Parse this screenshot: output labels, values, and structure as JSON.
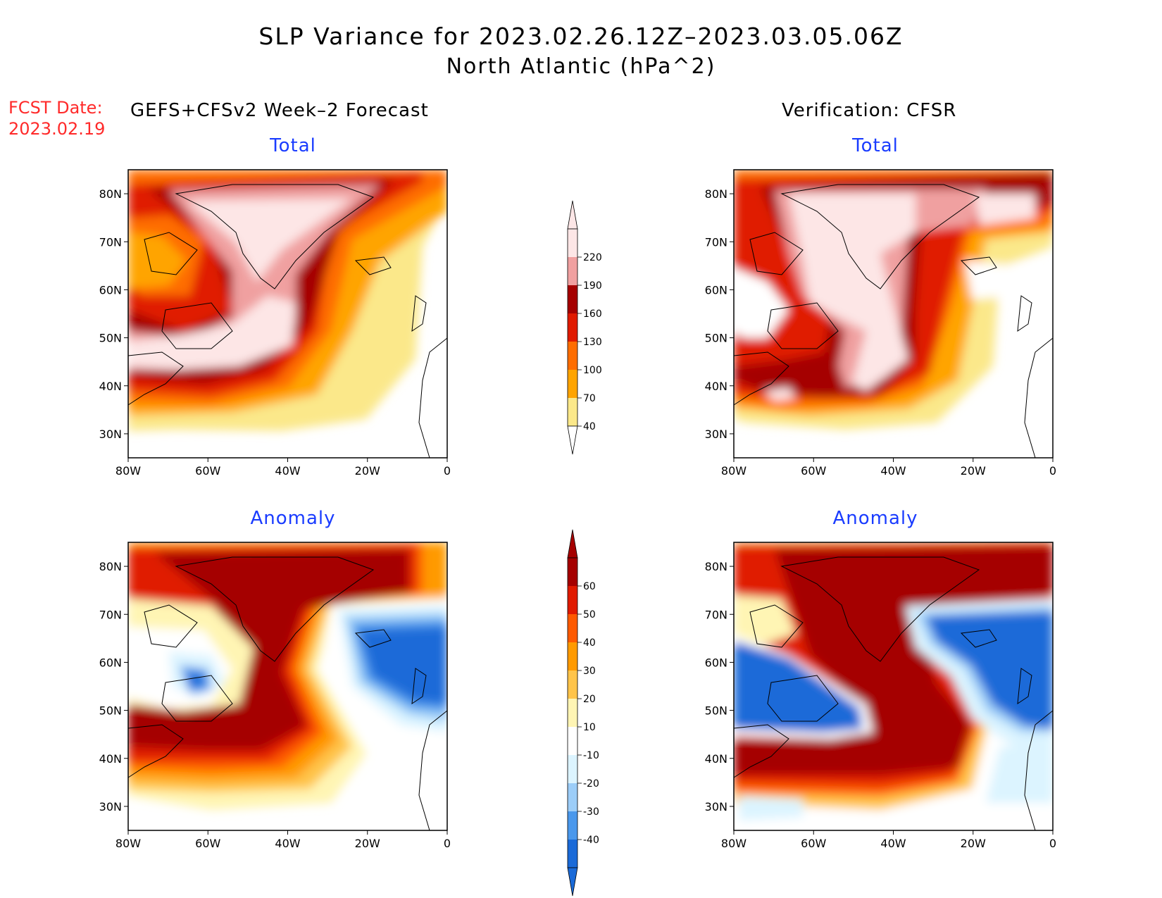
{
  "title": {
    "line1": "SLP Variance for 2023.02.26.12Z–2023.03.05.06Z",
    "line2": "North Atlantic (hPa^2)"
  },
  "forecast_date": {
    "label": "FCST Date:",
    "value": "2023.02.19"
  },
  "left_header": "GEFS+CFSv2 Week–2 Forecast",
  "right_header": "Verification: CFSR",
  "panels": {
    "fc_total": {
      "subtitle": "Total"
    },
    "vf_total": {
      "subtitle": "Total"
    },
    "fc_anom": {
      "subtitle": "Anomaly"
    },
    "vf_anom": {
      "subtitle": "Anomaly"
    }
  },
  "axes": {
    "lat_ticks": [
      "30N",
      "40N",
      "50N",
      "60N",
      "70N",
      "80N"
    ],
    "lon_ticks": [
      "80W",
      "60W",
      "40W",
      "20W",
      "0"
    ],
    "lat_range": [
      25,
      85
    ],
    "lon_range": [
      -80,
      0
    ]
  },
  "total_colorbar": {
    "ticks": [
      "40",
      "70",
      "100",
      "130",
      "160",
      "190",
      "220"
    ],
    "colors": [
      "#fbe88a",
      "#ffa400",
      "#fe6d00",
      "#e01a00",
      "#a50000",
      "#f0a0a0",
      "#fde6e6"
    ]
  },
  "anomaly_colorbar": {
    "ticks": [
      "-40",
      "-30",
      "-20",
      "-10",
      "10",
      "20",
      "30",
      "40",
      "50",
      "60"
    ],
    "colors": [
      "#1a6ad8",
      "#4a98ec",
      "#9ccdf8",
      "#dcf4ff",
      "#ffffff",
      "#fff5b4",
      "#ffc44a",
      "#ff9a00",
      "#fe5a00",
      "#e01a00",
      "#a50000"
    ]
  },
  "chart_data": {
    "type": "heatmap",
    "title": "SLP Variance for 2023.02.26.12Z–2023.03.05.06Z North Atlantic (hPa^2)",
    "xlabel": "",
    "ylabel": "",
    "xlim": [
      -80,
      0
    ],
    "ylim": [
      25,
      85
    ],
    "panels": [
      "GEFS+CFSv2 Week–2 Forecast Total",
      "Verification: CFSR Total",
      "GEFS+CFSv2 Week–2 Forecast Anomaly",
      "Verification: CFSR Anomaly"
    ]
  }
}
